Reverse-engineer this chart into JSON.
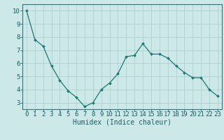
{
  "x": [
    0,
    1,
    2,
    3,
    4,
    5,
    6,
    7,
    8,
    9,
    10,
    11,
    12,
    13,
    14,
    15,
    16,
    17,
    18,
    19,
    20,
    21,
    22,
    23
  ],
  "y": [
    10.0,
    7.8,
    7.3,
    5.8,
    4.7,
    3.9,
    3.4,
    2.7,
    3.0,
    4.0,
    4.5,
    5.2,
    6.5,
    6.6,
    7.5,
    6.7,
    6.7,
    6.4,
    5.8,
    5.3,
    4.9,
    4.9,
    4.0,
    3.5
  ],
  "line_color": "#1a7a6e",
  "marker": "D",
  "marker_size": 2.0,
  "bg_color": "#cce8e8",
  "grid_color": "#b0d0d0",
  "xlabel": "Humidex (Indice chaleur)",
  "ylim": [
    2.5,
    10.5
  ],
  "xlim": [
    -0.5,
    23.5
  ],
  "yticks": [
    3,
    4,
    5,
    6,
    7,
    8,
    9,
    10
  ],
  "xtick_labels": [
    "0",
    "1",
    "2",
    "3",
    "4",
    "5",
    "6",
    "7",
    "8",
    "9",
    "10",
    "11",
    "12",
    "13",
    "14",
    "15",
    "16",
    "17",
    "18",
    "19",
    "20",
    "21",
    "22",
    "23"
  ],
  "xlabel_fontsize": 7,
  "tick_fontsize": 6.5
}
